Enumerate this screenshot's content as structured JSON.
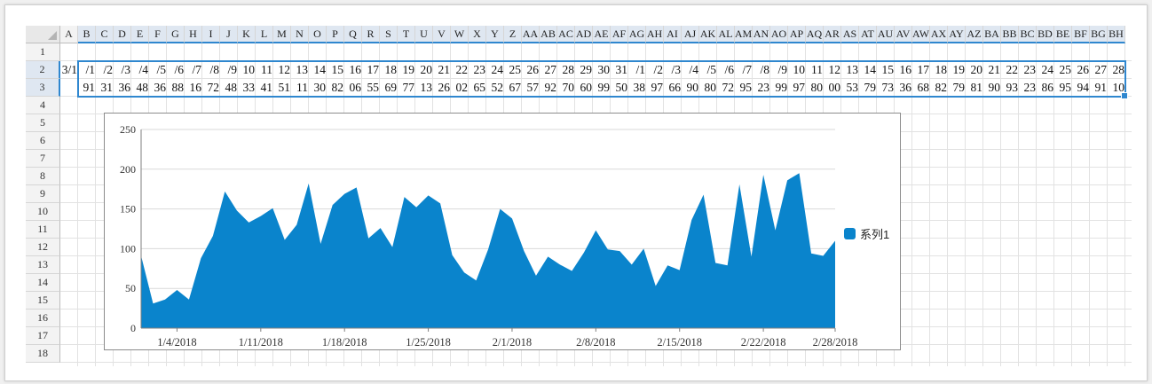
{
  "sheet": {
    "columns": [
      "A",
      "B",
      "C",
      "D",
      "E",
      "F",
      "G",
      "H",
      "I",
      "J",
      "K",
      "L",
      "M",
      "N",
      "O",
      "P",
      "Q",
      "R",
      "S",
      "T",
      "U",
      "V",
      "W",
      "X",
      "Y",
      "Z",
      "AA",
      "AB",
      "AC",
      "AD",
      "AE",
      "AF",
      "AG",
      "AH",
      "AI",
      "AJ",
      "AK",
      "AL",
      "AM",
      "AN",
      "AO",
      "AP",
      "AQ",
      "AR",
      "AS",
      "AT",
      "AU",
      "AV",
      "AW",
      "AX",
      "AY",
      "AZ",
      "BA",
      "BB",
      "BC",
      "BD",
      "BE",
      "BF",
      "BG",
      "BH"
    ],
    "rows": [
      "1",
      "2",
      "3",
      "4",
      "5",
      "6",
      "7",
      "8",
      "9",
      "10",
      "11",
      "12",
      "13",
      "14",
      "15",
      "16",
      "17",
      "18"
    ],
    "row2_cells": [
      "3/1",
      "/1",
      "/2",
      "/3",
      "/4",
      "/5",
      "/6",
      "/7",
      "/8",
      "/9",
      "10",
      "11",
      "12",
      "13",
      "14",
      "15",
      "16",
      "17",
      "18",
      "19",
      "20",
      "21",
      "22",
      "23",
      "24",
      "25",
      "26",
      "27",
      "28",
      "29",
      "30",
      "31",
      "/1",
      "/2",
      "/3",
      "/4",
      "/5",
      "/6",
      "/7",
      "/8",
      "/9",
      "10",
      "11",
      "12",
      "13",
      "14",
      "15",
      "16",
      "17",
      "18",
      "19",
      "20",
      "21",
      "22",
      "23",
      "24",
      "25",
      "26",
      "27",
      "28"
    ],
    "row3_cells": [
      "",
      "91",
      "31",
      "36",
      "48",
      "36",
      "88",
      "16",
      "72",
      "48",
      "33",
      "41",
      "51",
      "11",
      "30",
      "82",
      "06",
      "55",
      "69",
      "77",
      "13",
      "26",
      "02",
      "65",
      "52",
      "67",
      "57",
      "92",
      "70",
      "60",
      "99",
      "50",
      "38",
      "97",
      "66",
      "90",
      "80",
      "72",
      "95",
      "23",
      "99",
      "97",
      "80",
      "00",
      "53",
      "79",
      "73",
      "36",
      "68",
      "82",
      "79",
      "81",
      "90",
      "93",
      "23",
      "86",
      "95",
      "94",
      "91",
      "10"
    ]
  },
  "chart_data": {
    "type": "area",
    "series": [
      {
        "name": "系列1",
        "values": [
          91,
          31,
          36,
          48,
          36,
          88,
          116,
          172,
          148,
          133,
          141,
          151,
          111,
          130,
          182,
          106,
          155,
          169,
          177,
          113,
          126,
          102,
          165,
          152,
          167,
          157,
          92,
          70,
          60,
          99,
          150,
          138,
          97,
          66,
          90,
          80,
          72,
          95,
          123,
          99,
          97,
          80,
          100,
          53,
          79,
          73,
          136,
          168,
          82,
          79,
          181,
          90,
          193,
          123,
          186,
          195,
          94,
          91,
          110
        ]
      }
    ],
    "x_start": "1/1/2018",
    "x_end": "2/28/2018",
    "x_tick_labels": [
      "1/4/2018",
      "1/11/2018",
      "1/18/2018",
      "1/25/2018",
      "2/1/2018",
      "2/8/2018",
      "2/15/2018",
      "2/22/2018",
      "2/28/2018"
    ],
    "x_tick_day_index": [
      3,
      10,
      17,
      24,
      31,
      38,
      45,
      52,
      58
    ],
    "y_ticks": [
      0,
      50,
      100,
      150,
      200,
      250
    ],
    "ylim": [
      0,
      250
    ],
    "grid": true,
    "legend_position": "right",
    "color": "#0a84cc"
  }
}
